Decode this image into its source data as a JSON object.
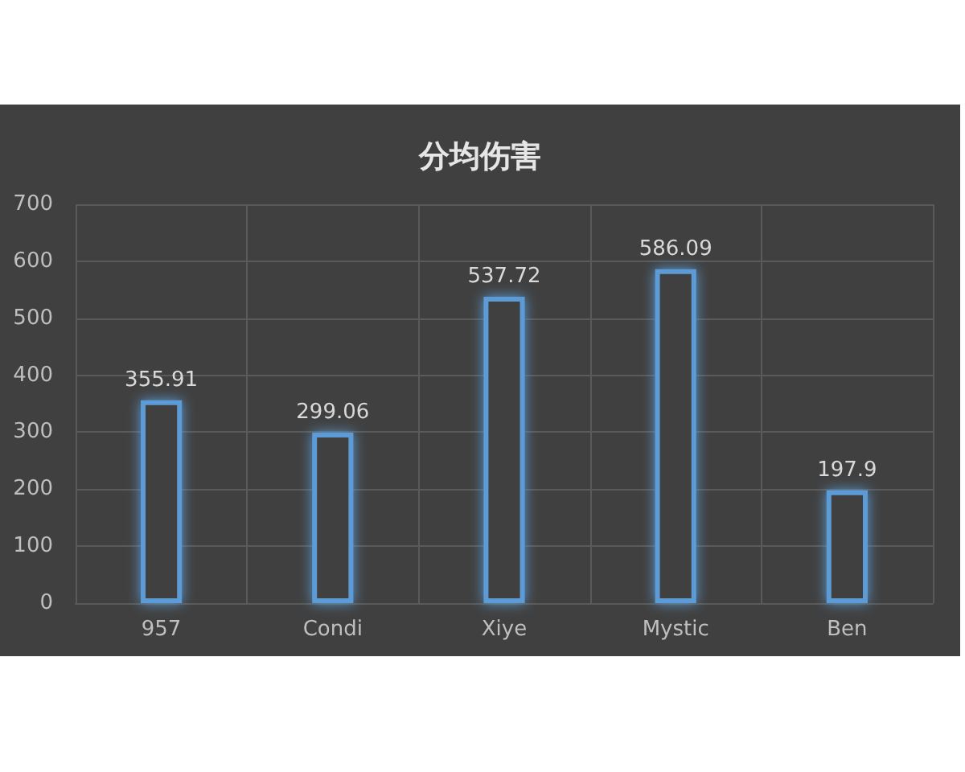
{
  "chart_data": {
    "type": "bar",
    "title": "分均伤害",
    "categories": [
      "957",
      "Condi",
      "Xiye",
      "Mystic",
      "Ben"
    ],
    "values": [
      355.91,
      299.06,
      537.72,
      586.09,
      197.9
    ],
    "color": "#5b9bd5",
    "ylim": [
      0,
      700
    ],
    "yticks": [
      0,
      100,
      200,
      300,
      400,
      500,
      600,
      700
    ],
    "grid": true,
    "data_labels": true
  }
}
